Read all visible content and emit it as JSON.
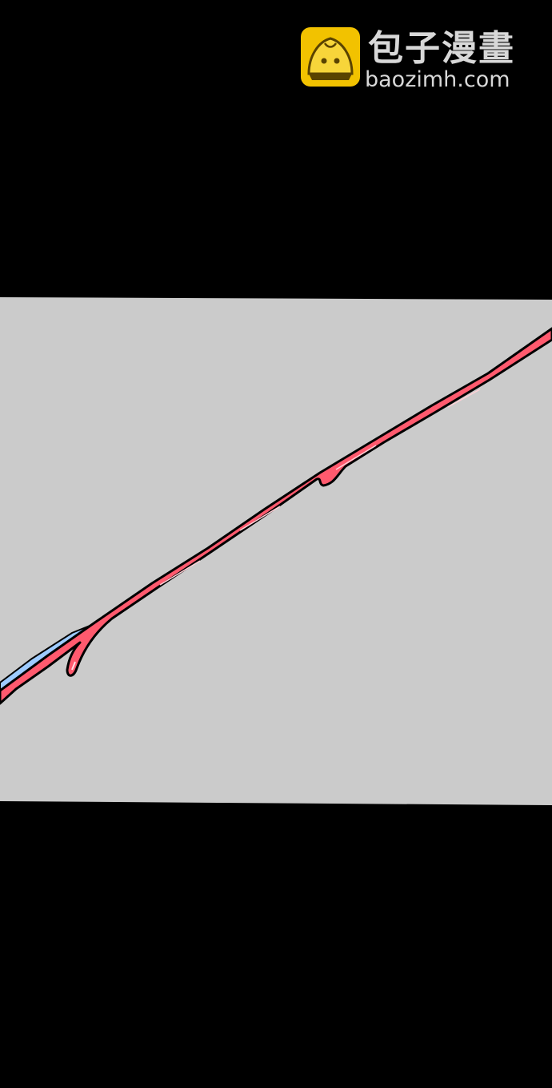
{
  "watermark": {
    "title": "包子漫畫",
    "domain": "baozimh.com",
    "logo_icon": "steamed-bun-icon",
    "text_color": "#d8d8d8",
    "logo_color": "#f2c200"
  },
  "panel": {
    "background_color": "#cbcbcb",
    "outside_color": "#000000",
    "blade_color": "#ff5a6e",
    "blade_edge_color": "#9ecbff"
  }
}
